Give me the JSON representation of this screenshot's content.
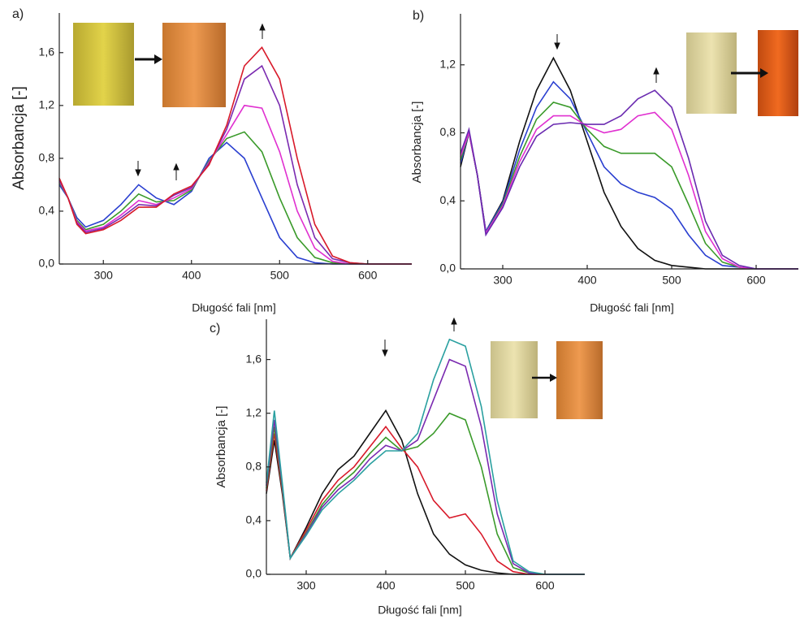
{
  "chart_data": [
    {
      "type": "line",
      "panel_label": "a)",
      "xlabel": "Długość fali [nm]",
      "ylabel": "Absorbancja [-]",
      "x": [
        250,
        260,
        270,
        280,
        300,
        320,
        340,
        360,
        380,
        400,
        420,
        440,
        460,
        480,
        500,
        520,
        540,
        560,
        580,
        600,
        650
      ],
      "xlim": [
        250,
        650
      ],
      "ylim": [
        0,
        1.9
      ],
      "xticks": [
        300,
        400,
        500,
        600
      ],
      "yticks": [
        {
          "value": 0,
          "label": "0,0"
        },
        {
          "value": 0.4,
          "label": "0,4"
        },
        {
          "value": 0.8,
          "label": "0,8"
        },
        {
          "value": 1.2,
          "label": "1,2"
        },
        {
          "value": 1.6,
          "label": "1,6"
        }
      ],
      "series": [
        {
          "color": "#2a3fd0",
          "values": [
            0.6,
            0.5,
            0.35,
            0.28,
            0.33,
            0.45,
            0.6,
            0.5,
            0.45,
            0.55,
            0.8,
            0.92,
            0.8,
            0.5,
            0.2,
            0.05,
            0.01,
            0,
            0,
            0,
            0
          ]
        },
        {
          "color": "#3a9a2a",
          "values": [
            0.62,
            0.5,
            0.33,
            0.26,
            0.3,
            0.4,
            0.53,
            0.47,
            0.48,
            0.56,
            0.78,
            0.95,
            1.0,
            0.85,
            0.5,
            0.2,
            0.05,
            0.01,
            0,
            0,
            0
          ]
        },
        {
          "color": "#e030d0",
          "values": [
            0.63,
            0.5,
            0.32,
            0.25,
            0.28,
            0.37,
            0.48,
            0.45,
            0.5,
            0.57,
            0.77,
            0.98,
            1.2,
            1.18,
            0.85,
            0.4,
            0.12,
            0.02,
            0,
            0,
            0
          ]
        },
        {
          "color": "#7a2ab0",
          "values": [
            0.64,
            0.5,
            0.31,
            0.24,
            0.27,
            0.35,
            0.45,
            0.44,
            0.52,
            0.58,
            0.76,
            1.02,
            1.4,
            1.5,
            1.2,
            0.6,
            0.2,
            0.04,
            0.01,
            0,
            0
          ]
        },
        {
          "color": "#d81a2a",
          "values": [
            0.65,
            0.5,
            0.3,
            0.23,
            0.26,
            0.33,
            0.43,
            0.43,
            0.53,
            0.59,
            0.75,
            1.05,
            1.5,
            1.64,
            1.4,
            0.8,
            0.3,
            0.06,
            0.01,
            0,
            0
          ]
        }
      ]
    },
    {
      "type": "line",
      "panel_label": "b)",
      "xlabel": "Długość fali [nm]",
      "ylabel": "Absorbancja [-]",
      "x": [
        250,
        260,
        270,
        280,
        300,
        320,
        340,
        360,
        380,
        400,
        420,
        440,
        460,
        480,
        500,
        520,
        540,
        560,
        580,
        600,
        650
      ],
      "xlim": [
        250,
        650
      ],
      "ylim": [
        0,
        1.5
      ],
      "xticks": [
        300,
        400,
        500,
        600
      ],
      "yticks": [
        {
          "value": 0,
          "label": "0,0"
        },
        {
          "value": 0.4,
          "label": "0,4"
        },
        {
          "value": 0.8,
          "label": "0,8"
        },
        {
          "value": 1.2,
          "label": "1,2"
        }
      ],
      "series": [
        {
          "color": "#111111",
          "values": [
            0.6,
            0.8,
            0.55,
            0.22,
            0.4,
            0.75,
            1.05,
            1.24,
            1.05,
            0.75,
            0.45,
            0.25,
            0.12,
            0.05,
            0.02,
            0.01,
            0,
            0,
            0,
            0,
            0
          ]
        },
        {
          "color": "#2a3fd0",
          "values": [
            0.62,
            0.8,
            0.55,
            0.22,
            0.39,
            0.7,
            0.95,
            1.1,
            1.0,
            0.8,
            0.6,
            0.5,
            0.45,
            0.42,
            0.35,
            0.2,
            0.08,
            0.02,
            0.01,
            0,
            0
          ]
        },
        {
          "color": "#3a9a2a",
          "values": [
            0.64,
            0.8,
            0.55,
            0.21,
            0.38,
            0.66,
            0.88,
            0.98,
            0.95,
            0.82,
            0.72,
            0.68,
            0.68,
            0.68,
            0.6,
            0.38,
            0.15,
            0.04,
            0.01,
            0,
            0
          ]
        },
        {
          "color": "#e030d0",
          "values": [
            0.66,
            0.8,
            0.55,
            0.21,
            0.37,
            0.63,
            0.82,
            0.9,
            0.9,
            0.84,
            0.8,
            0.82,
            0.9,
            0.92,
            0.82,
            0.55,
            0.22,
            0.06,
            0.01,
            0,
            0
          ]
        },
        {
          "color": "#6a2ab0",
          "values": [
            0.68,
            0.82,
            0.55,
            0.2,
            0.36,
            0.6,
            0.78,
            0.85,
            0.86,
            0.85,
            0.85,
            0.9,
            1.0,
            1.05,
            0.95,
            0.65,
            0.28,
            0.08,
            0.02,
            0,
            0
          ]
        }
      ]
    },
    {
      "type": "line",
      "panel_label": "c)",
      "xlabel": "Długość fali [nm]",
      "ylabel": "Absorbancja [-]",
      "x": [
        250,
        260,
        270,
        280,
        300,
        320,
        340,
        360,
        380,
        400,
        420,
        440,
        460,
        480,
        500,
        520,
        540,
        560,
        580,
        600,
        650
      ],
      "xlim": [
        250,
        650
      ],
      "ylim": [
        0,
        1.9
      ],
      "xticks": [
        300,
        400,
        500,
        600
      ],
      "yticks": [
        {
          "value": 0,
          "label": "0,0"
        },
        {
          "value": 0.4,
          "label": "0,4"
        },
        {
          "value": 0.8,
          "label": "0,8"
        },
        {
          "value": 1.2,
          "label": "1,2"
        },
        {
          "value": 1.6,
          "label": "1,6"
        }
      ],
      "series": [
        {
          "color": "#111111",
          "values": [
            0.6,
            1.0,
            0.6,
            0.12,
            0.35,
            0.6,
            0.78,
            0.88,
            1.05,
            1.22,
            1.0,
            0.6,
            0.3,
            0.15,
            0.07,
            0.03,
            0.01,
            0,
            0,
            0,
            0
          ]
        },
        {
          "color": "#d81a2a",
          "values": [
            0.62,
            1.05,
            0.62,
            0.12,
            0.33,
            0.55,
            0.7,
            0.8,
            0.95,
            1.1,
            0.94,
            0.8,
            0.55,
            0.42,
            0.45,
            0.3,
            0.1,
            0.02,
            0,
            0,
            0
          ]
        },
        {
          "color": "#3a9a2a",
          "values": [
            0.64,
            1.1,
            0.64,
            0.12,
            0.31,
            0.52,
            0.66,
            0.76,
            0.9,
            1.02,
            0.92,
            0.95,
            1.05,
            1.2,
            1.15,
            0.8,
            0.3,
            0.05,
            0.01,
            0,
            0
          ]
        },
        {
          "color": "#7a2ab0",
          "values": [
            0.66,
            1.15,
            0.66,
            0.12,
            0.3,
            0.5,
            0.63,
            0.72,
            0.86,
            0.96,
            0.92,
            1.0,
            1.3,
            1.6,
            1.55,
            1.1,
            0.45,
            0.08,
            0.01,
            0,
            0
          ]
        },
        {
          "color": "#2aa0a0",
          "values": [
            0.68,
            1.22,
            0.68,
            0.12,
            0.29,
            0.48,
            0.6,
            0.7,
            0.82,
            0.92,
            0.92,
            1.05,
            1.45,
            1.75,
            1.7,
            1.25,
            0.55,
            0.1,
            0.02,
            0,
            0
          ]
        }
      ]
    }
  ]
}
